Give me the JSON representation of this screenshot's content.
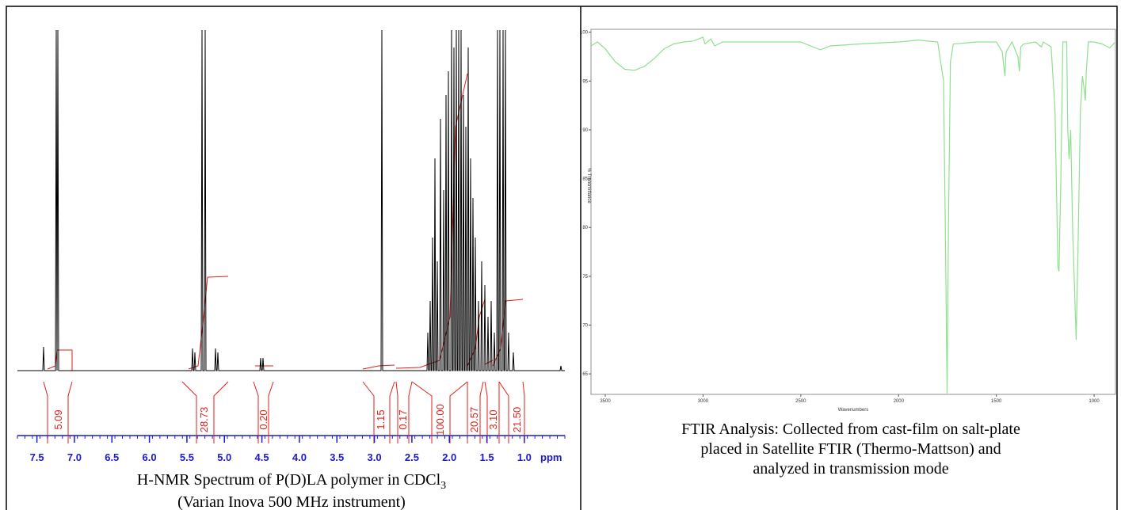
{
  "nmr": {
    "xlim": [
      7.76,
      0.46
    ],
    "xticks": [
      7.5,
      {
        "value": 7,
        "label": "7.0"
      },
      6.5,
      {
        "value": 6,
        "label": "6.0"
      },
      5.5,
      {
        "value": 5,
        "label": "5.0"
      },
      4.5,
      {
        "value": 4,
        "label": "4.0"
      },
      3.5,
      {
        "value": 3,
        "label": "3.0"
      },
      2.5,
      {
        "value": 2,
        "label": "2.0"
      },
      1.5,
      {
        "value": 1,
        "label": "1.0"
      }
    ],
    "unit": "ppm",
    "integrals": [
      "5.09",
      "28.73",
      "0.20",
      "1.15",
      "0.17",
      "100.00",
      "20.57",
      "3.10",
      "21.50"
    ],
    "caption": [
      "H-NMR Spectrum of P(D)LA polymer in CDCl",
      "3",
      "(Varian Inova 500 MHz instrument)"
    ]
  },
  "ftir": {
    "xlim": [
      3573,
      891
    ],
    "ylim": [
      62.9,
      100.3
    ],
    "xticks": [
      3500,
      3000,
      2500,
      2000,
      1500,
      1000
    ],
    "yticks": [
      65,
      70,
      75,
      80,
      85,
      90,
      95,
      100
    ],
    "x_label": "Wavenumbers",
    "y_label": "% Transmittance",
    "caption": [
      "FTIR Analysis: Collected from cast-film on salt-plate",
      "placed in Satellite FTIR (Thermo-Mattson) and",
      "analyzed in transmission mode"
    ]
  }
}
